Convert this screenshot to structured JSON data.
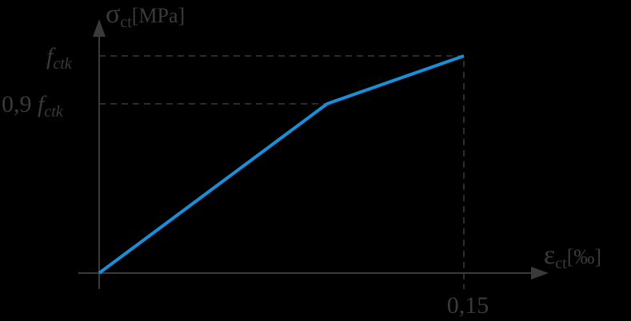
{
  "axes": {
    "y_symbol": "σ",
    "y_subscript": "ct",
    "y_unit": "[MPa]",
    "x_symbol": "ε",
    "x_subscript": "ct",
    "x_unit": "[‰]"
  },
  "labels": {
    "fctk_symbol": "f",
    "fctk_subscript": "ctk",
    "fctk09_prefix": "0,9 ",
    "fctk09_symbol": "f",
    "fctk09_subscript": "ctk",
    "x_mark": "0,15"
  }
}
